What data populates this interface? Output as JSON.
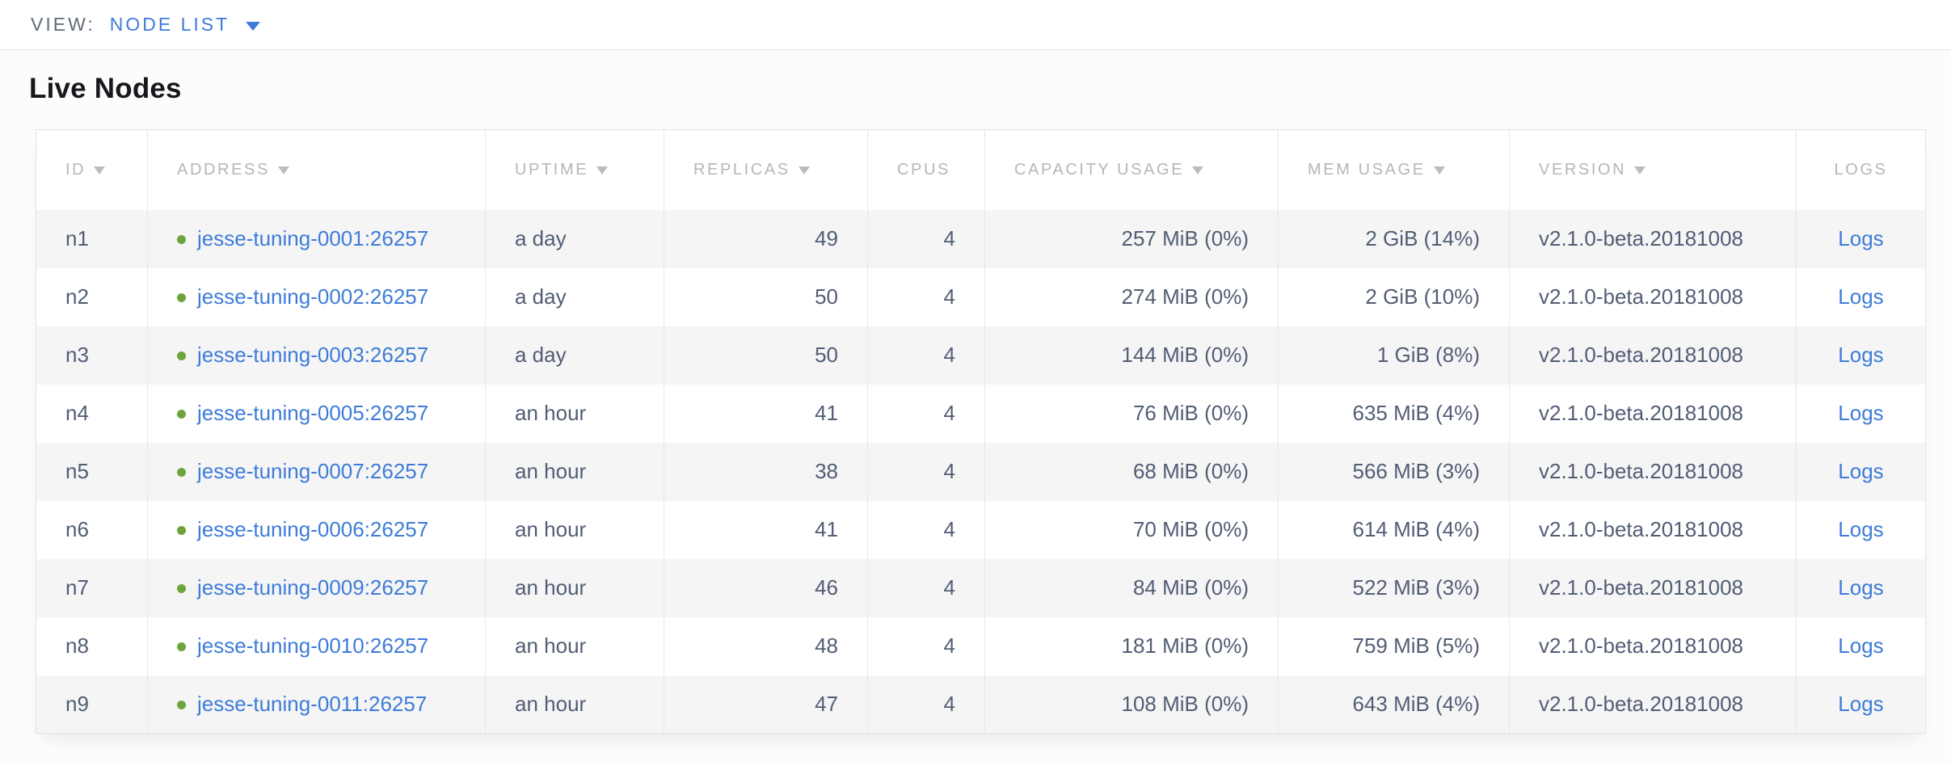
{
  "view_bar": {
    "label": "VIEW:",
    "selected": "NODE LIST"
  },
  "page": {
    "title": "Live Nodes"
  },
  "colors": {
    "link_blue": "#3e7cd8",
    "accent_blue": "#3d7bd9",
    "status_green": "#6fa43c",
    "header_gray": "#b3b7bc",
    "body_slate": "#525d74",
    "row_stripe": "#f5f5f6"
  },
  "table": {
    "columns": [
      {
        "key": "id",
        "label": "ID",
        "sortable": true,
        "align": "left",
        "type": "text"
      },
      {
        "key": "address",
        "label": "ADDRESS",
        "sortable": true,
        "align": "left",
        "type": "address"
      },
      {
        "key": "uptime",
        "label": "UPTIME",
        "sortable": true,
        "align": "left",
        "type": "text"
      },
      {
        "key": "replicas",
        "label": "REPLICAS",
        "sortable": true,
        "align": "right",
        "type": "text"
      },
      {
        "key": "cpus",
        "label": "CPUS",
        "sortable": false,
        "align": "right",
        "type": "text"
      },
      {
        "key": "capacity",
        "label": "CAPACITY USAGE",
        "sortable": true,
        "align": "right",
        "type": "text"
      },
      {
        "key": "mem",
        "label": "MEM USAGE",
        "sortable": true,
        "align": "right",
        "type": "text"
      },
      {
        "key": "version",
        "label": "VERSION",
        "sortable": true,
        "align": "left",
        "type": "text"
      },
      {
        "key": "logs",
        "label": "LOGS",
        "sortable": false,
        "align": "center",
        "type": "link"
      }
    ],
    "rows": [
      {
        "id": "n1",
        "address": "jesse-tuning-0001:26257",
        "uptime": "a day",
        "replicas": "49",
        "cpus": "4",
        "capacity": "257 MiB (0%)",
        "mem": "2 GiB (14%)",
        "version": "v2.1.0-beta.20181008",
        "logs": "Logs"
      },
      {
        "id": "n2",
        "address": "jesse-tuning-0002:26257",
        "uptime": "a day",
        "replicas": "50",
        "cpus": "4",
        "capacity": "274 MiB (0%)",
        "mem": "2 GiB (10%)",
        "version": "v2.1.0-beta.20181008",
        "logs": "Logs"
      },
      {
        "id": "n3",
        "address": "jesse-tuning-0003:26257",
        "uptime": "a day",
        "replicas": "50",
        "cpus": "4",
        "capacity": "144 MiB (0%)",
        "mem": "1 GiB (8%)",
        "version": "v2.1.0-beta.20181008",
        "logs": "Logs"
      },
      {
        "id": "n4",
        "address": "jesse-tuning-0005:26257",
        "uptime": "an hour",
        "replicas": "41",
        "cpus": "4",
        "capacity": "76 MiB (0%)",
        "mem": "635 MiB (4%)",
        "version": "v2.1.0-beta.20181008",
        "logs": "Logs"
      },
      {
        "id": "n5",
        "address": "jesse-tuning-0007:26257",
        "uptime": "an hour",
        "replicas": "38",
        "cpus": "4",
        "capacity": "68 MiB (0%)",
        "mem": "566 MiB (3%)",
        "version": "v2.1.0-beta.20181008",
        "logs": "Logs"
      },
      {
        "id": "n6",
        "address": "jesse-tuning-0006:26257",
        "uptime": "an hour",
        "replicas": "41",
        "cpus": "4",
        "capacity": "70 MiB (0%)",
        "mem": "614 MiB (4%)",
        "version": "v2.1.0-beta.20181008",
        "logs": "Logs"
      },
      {
        "id": "n7",
        "address": "jesse-tuning-0009:26257",
        "uptime": "an hour",
        "replicas": "46",
        "cpus": "4",
        "capacity": "84 MiB (0%)",
        "mem": "522 MiB (3%)",
        "version": "v2.1.0-beta.20181008",
        "logs": "Logs"
      },
      {
        "id": "n8",
        "address": "jesse-tuning-0010:26257",
        "uptime": "an hour",
        "replicas": "48",
        "cpus": "4",
        "capacity": "181 MiB (0%)",
        "mem": "759 MiB (5%)",
        "version": "v2.1.0-beta.20181008",
        "logs": "Logs"
      },
      {
        "id": "n9",
        "address": "jesse-tuning-0011:26257",
        "uptime": "an hour",
        "replicas": "47",
        "cpus": "4",
        "capacity": "108 MiB (0%)",
        "mem": "643 MiB (4%)",
        "version": "v2.1.0-beta.20181008",
        "logs": "Logs"
      }
    ]
  }
}
